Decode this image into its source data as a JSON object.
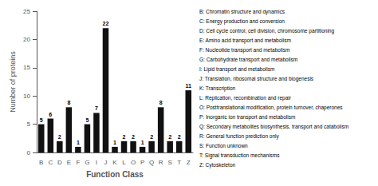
{
  "chart_data": {
    "type": "bar",
    "categories": [
      "B",
      "C",
      "D",
      "E",
      "F",
      "G",
      "I",
      "J",
      "K",
      "L",
      "O",
      "P",
      "Q",
      "R",
      "S",
      "T",
      "Z"
    ],
    "values": [
      5,
      6,
      2,
      8,
      1,
      5,
      7,
      22,
      1,
      2,
      2,
      1,
      2,
      8,
      2,
      2,
      11
    ],
    "color": "#111111",
    "xlabel": "Function Class",
    "ylabel": "Number of proteins",
    "ylim": [
      0,
      25
    ],
    "yticks": [
      0,
      5,
      10,
      15,
      20,
      25
    ],
    "grid": false,
    "data_labels": true,
    "annotations": [
      "B: Chromatin structure and dynamics",
      "C: Energy production and conversion",
      "D: Cell cycle control, cell division, chromosome partitioning",
      "E: Amino acid transport and metabolism",
      "F: Nucleotide transport and metabolism",
      "G: Carbohydrate transport and metabolism",
      "I: Lipid transport and metabolism",
      "J: Translation, ribosomal structure and biogenesis",
      "K: Transcription",
      "L: Replication, recombination and repair",
      "O: Posttranslational modification, protein turnover, chaperones",
      "P: Inorganic ion transport and metabolism",
      "Q: Secondary metabolites biosynthesis, transport and catabolism",
      "R: General function prediction only",
      "S: Function unknown",
      "T: Signal transduction mechanisms",
      "Z: Cytoskeleton"
    ]
  }
}
